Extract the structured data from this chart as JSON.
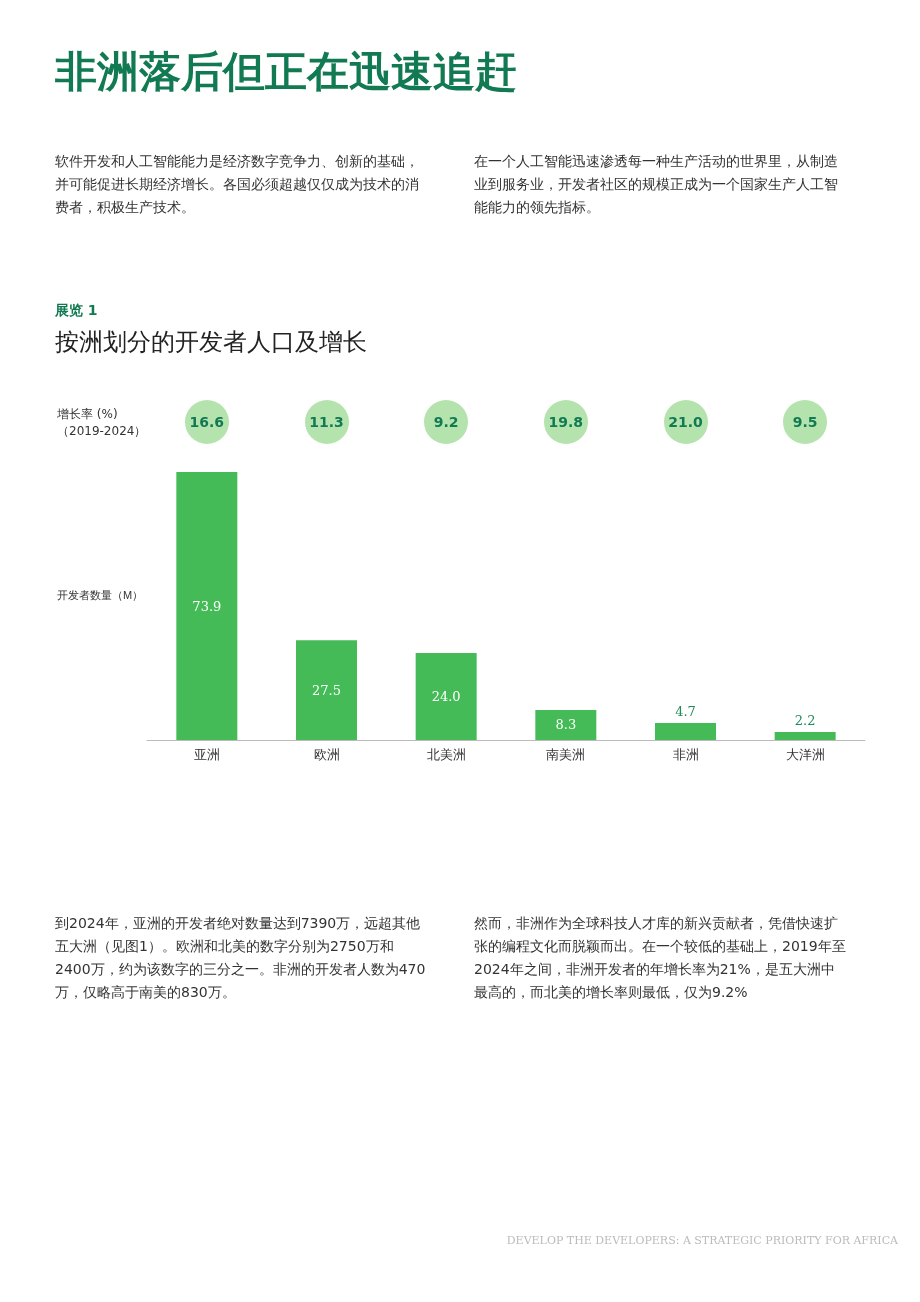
{
  "chart_data": {
    "type": "bar",
    "title": "非洲落后但正在迅速追赶",
    "subtitle": "按洲划分的开发者人口及增长",
    "ylabel": "开发者数量（M）",
    "categories": [
      "亚洲",
      "欧洲",
      "北美洲",
      "南美洲",
      "非洲",
      "大洋洲"
    ],
    "values": [
      73.9,
      27.5,
      24.0,
      8.3,
      4.7,
      2.2
    ],
    "color": "#45bb58",
    "value_labels": [
      "73.9",
      "27.5",
      "24.0",
      "8.3",
      "4.7",
      "2.2"
    ],
    "annotations": [
      "软件开发和人工智能能力是经济数字竞争力、创新的基础，并可能促进长期经济增长。各国必须超越仅仅成为技术的消费者，积极生产技术。",
      "在一个人工智能迅速渗透每一种生产活动的世界里，从制造业到服务业，开发者社区的规模正成为一个国家生产人工智能能力的领先指标。",
      "展览 1",
      "增长率 (%)（2019-2024）",
      "16.6",
      "11.3",
      "9.2",
      "19.8",
      "21.0",
      "9.5",
      "到2024年，亚洲的开发者绝对数量达到7390万，远超其他五大洲（见图1）。欧洲和北美的数字分别为2750万和2400万，约为该数字的三分之一。非洲的开发者人数为470万，仅略高于南美的830万。",
      "然而，非洲作为全球科技人才库的新兴贡献者，凭借快速扩张的编程文化而脱颖而出。在一个较低的基础上，2019年至2024年之间，非洲开发者的年增长率为21%，是五大洲中最高的，而北美的增长率则最低，仅为9.2%",
      "DEVELOP THE DEVELOPERS: A STRATEGIC PRIORITY FOR AFRICA"
    ]
  }
}
